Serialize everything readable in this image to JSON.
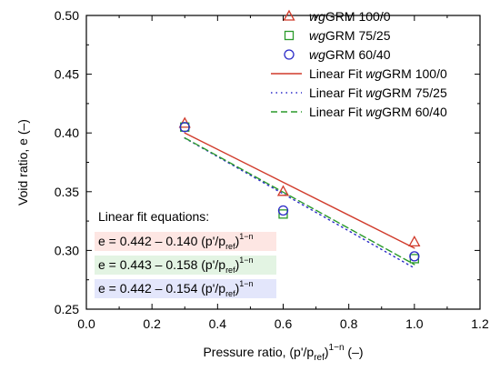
{
  "chart_data": {
    "type": "scatter",
    "xlabel": "Pressure ratio, (p'/p_ref)^(1−n) (–)",
    "ylabel": "Void ratio, e (–)",
    "xlim": [
      0.0,
      1.2
    ],
    "ylim": [
      0.25,
      0.5
    ],
    "x_ticks": [
      "0.0",
      "0.2",
      "0.4",
      "0.6",
      "0.8",
      "1.0",
      "1.2"
    ],
    "y_ticks": [
      "0.25",
      "0.30",
      "0.35",
      "0.40",
      "0.45",
      "0.50"
    ],
    "legend_position": "top-right",
    "series": [
      {
        "name": "wgGRM 100/0",
        "marker": "triangle",
        "color": "#d03a2a",
        "x": [
          0.3,
          0.6,
          1.0
        ],
        "y": [
          0.408,
          0.35,
          0.307
        ]
      },
      {
        "name": "wgGRM 75/25",
        "marker": "square",
        "color": "#2a9a2a",
        "x": [
          0.3,
          0.6,
          1.0
        ],
        "y": [
          0.405,
          0.331,
          0.293
        ]
      },
      {
        "name": "wgGRM 60/40",
        "marker": "circle",
        "color": "#2b2bc8",
        "x": [
          0.3,
          0.6,
          1.0
        ],
        "y": [
          0.405,
          0.334,
          0.295
        ]
      }
    ],
    "fits": [
      {
        "name": "Linear Fit wgGRM 100/0",
        "style": "solid",
        "color": "#d03a2a",
        "intercept": 0.442,
        "slope": -0.14,
        "x_range": [
          0.3,
          1.0
        ]
      },
      {
        "name": "Linear Fit wgGRM 75/25",
        "style": "dotted",
        "color": "#2b2bc8",
        "intercept": 0.443,
        "slope": -0.158,
        "x_range": [
          0.3,
          1.0
        ]
      },
      {
        "name": "Linear Fit wgGRM 60/40",
        "style": "dashed",
        "color": "#2a9a2a",
        "intercept": 0.442,
        "slope": -0.154,
        "x_range": [
          0.3,
          1.0
        ]
      }
    ],
    "annotations": {
      "title": "Linear fit equations:",
      "equations": [
        {
          "main": "e = 0.442 – 0.140 (p'/p",
          "sub": "ref",
          "close": ")",
          "sup": "1−n",
          "color": "#d03a2a",
          "bg": "#fde6e3"
        },
        {
          "main": "e = 0.443 – 0.158 (p'/p",
          "sub": "ref",
          "close": ")",
          "sup": "1−n",
          "color": "#2a9a2a",
          "bg": "#e3f4e3"
        },
        {
          "main": "e = 0.442 – 0.154 (p'/p",
          "sub": "ref",
          "close": ")",
          "sup": "1−n",
          "color": "#2b2bc8",
          "bg": "#e3e6fb"
        }
      ]
    }
  }
}
